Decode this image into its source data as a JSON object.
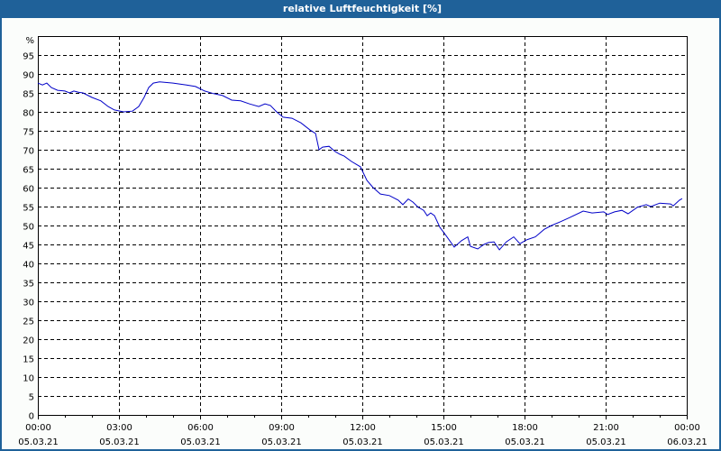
{
  "window": {
    "title": "relative Luftfeuchtigkeit [%]",
    "titlebar_color": "#1f6199",
    "background": "#fbfdfb"
  },
  "chart_data": {
    "type": "line",
    "title": "relative Luftfeuchtigkeit [%]",
    "xlabel": "",
    "ylabel": "%",
    "ylim": [
      0,
      100
    ],
    "xlim_hours": [
      0,
      24
    ],
    "grid": true,
    "grid_style": "dashed",
    "legend": null,
    "y_ticks": [
      0,
      5,
      10,
      15,
      20,
      25,
      30,
      35,
      40,
      45,
      50,
      55,
      60,
      65,
      70,
      75,
      80,
      85,
      90,
      95
    ],
    "y_unit_label": "%",
    "x_ticks": [
      {
        "hour": 0,
        "time": "00:00",
        "date": "05.03.21"
      },
      {
        "hour": 3,
        "time": "03:00",
        "date": "05.03.21"
      },
      {
        "hour": 6,
        "time": "06:00",
        "date": "05.03.21"
      },
      {
        "hour": 9,
        "time": "09:00",
        "date": "05.03.21"
      },
      {
        "hour": 12,
        "time": "12:00",
        "date": "05.03.21"
      },
      {
        "hour": 15,
        "time": "15:00",
        "date": "05.03.21"
      },
      {
        "hour": 18,
        "time": "18:00",
        "date": "05.03.21"
      },
      {
        "hour": 21,
        "time": "21:00",
        "date": "05.03.21"
      },
      {
        "hour": 24,
        "time": "00:00",
        "date": "06.03.21"
      }
    ],
    "series": [
      {
        "name": "relative Luftfeuchtigkeit",
        "color": "#0000c8",
        "x_hours": [
          0.0,
          0.17,
          0.33,
          0.5,
          0.73,
          1.0,
          1.17,
          1.33,
          1.5,
          1.67,
          2.0,
          2.33,
          2.6,
          2.83,
          3.17,
          3.5,
          3.73,
          3.93,
          4.1,
          4.27,
          4.5,
          5.0,
          5.5,
          5.83,
          6.17,
          6.5,
          6.83,
          7.17,
          7.5,
          7.83,
          8.17,
          8.4,
          8.6,
          8.83,
          9.07,
          9.4,
          9.73,
          10.07,
          10.27,
          10.4,
          10.53,
          10.77,
          11.0,
          11.17,
          11.33,
          11.6,
          11.93,
          12.17,
          12.4,
          12.67,
          13.0,
          13.33,
          13.5,
          13.7,
          13.87,
          14.07,
          14.27,
          14.4,
          14.53,
          14.67,
          14.87,
          15.07,
          15.4,
          15.67,
          15.9,
          16.0,
          16.27,
          16.5,
          16.67,
          16.87,
          17.07,
          17.33,
          17.6,
          17.83,
          18.07,
          18.4,
          18.73,
          19.0,
          19.33,
          19.67,
          20.17,
          20.5,
          20.93,
          21.07,
          21.33,
          21.6,
          21.83,
          22.17,
          22.5,
          22.67,
          23.0,
          23.4,
          23.5,
          23.73,
          23.83
        ],
        "values": [
          87.6,
          87.1,
          87.6,
          86.4,
          85.7,
          85.5,
          85.0,
          85.5,
          85.2,
          85.0,
          83.8,
          82.9,
          81.4,
          80.5,
          80.0,
          80.2,
          81.4,
          83.8,
          86.4,
          87.6,
          87.9,
          87.6,
          87.1,
          86.7,
          85.5,
          84.8,
          84.3,
          83.1,
          82.9,
          82.1,
          81.4,
          82.1,
          81.7,
          80.0,
          78.6,
          78.3,
          77.1,
          75.2,
          74.3,
          70.0,
          70.7,
          70.9,
          69.5,
          68.8,
          68.3,
          66.9,
          65.5,
          61.9,
          60.0,
          58.3,
          57.9,
          56.7,
          55.5,
          57.0,
          56.2,
          54.8,
          54.0,
          52.6,
          53.3,
          52.6,
          49.5,
          47.6,
          44.3,
          46.0,
          47.0,
          44.5,
          43.8,
          45.0,
          45.5,
          45.7,
          43.6,
          45.7,
          47.0,
          45.2,
          46.2,
          47.0,
          49.0,
          50.0,
          51.0,
          52.1,
          53.8,
          53.3,
          53.6,
          52.9,
          53.6,
          54.0,
          53.1,
          54.8,
          55.5,
          55.0,
          55.9,
          55.7,
          55.2,
          56.7,
          57.1
        ]
      }
    ]
  }
}
